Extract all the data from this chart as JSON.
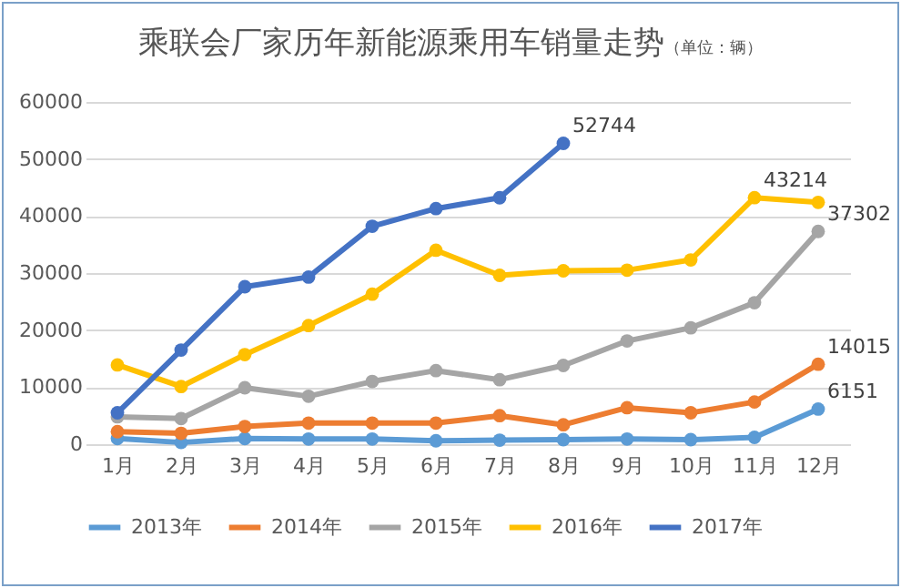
{
  "chart_data": {
    "type": "line",
    "title": "乘联会厂家历年新能源乘用车销量走势",
    "subtitle": "（单位：辆）",
    "categories": [
      "1月",
      "2月",
      "3月",
      "4月",
      "5月",
      "6月",
      "7月",
      "8月",
      "9月",
      "10月",
      "11月",
      "12月"
    ],
    "series": [
      {
        "name": "2013年",
        "color": "#5b9bd5",
        "values": [
          1000,
          300,
          1000,
          900,
          900,
          600,
          700,
          800,
          900,
          800,
          1200,
          6151
        ],
        "value_labels": [
          null,
          null,
          null,
          null,
          null,
          null,
          null,
          null,
          null,
          null,
          null,
          "6151"
        ]
      },
      {
        "name": "2014年",
        "color": "#ed7d31",
        "values": [
          2200,
          1900,
          3100,
          3700,
          3700,
          3700,
          5000,
          3400,
          6400,
          5500,
          7400,
          14015
        ],
        "value_labels": [
          null,
          null,
          null,
          null,
          null,
          null,
          null,
          null,
          null,
          null,
          null,
          "14015"
        ]
      },
      {
        "name": "2015年",
        "color": "#a5a5a5",
        "values": [
          4800,
          4500,
          9900,
          8400,
          11000,
          12900,
          11300,
          13800,
          18100,
          20400,
          24800,
          37302
        ],
        "value_labels": [
          null,
          null,
          null,
          null,
          null,
          null,
          null,
          null,
          null,
          null,
          null,
          "37302"
        ]
      },
      {
        "name": "2016年",
        "color": "#ffc000",
        "values": [
          13900,
          10100,
          15700,
          20800,
          26300,
          34000,
          29600,
          30400,
          30500,
          32300,
          43214,
          42400
        ],
        "value_labels": [
          null,
          null,
          null,
          null,
          null,
          null,
          null,
          null,
          null,
          null,
          "43214",
          null
        ]
      },
      {
        "name": "2017年",
        "color": "#4472c4",
        "values": [
          5500,
          16500,
          27600,
          29300,
          38200,
          41300,
          43200,
          52744,
          null,
          null,
          null,
          null
        ],
        "value_labels": [
          null,
          null,
          null,
          null,
          null,
          null,
          null,
          "52744",
          null,
          null,
          null,
          null
        ]
      }
    ],
    "ylim": [
      0,
      60000
    ],
    "yticks": [
      0,
      10000,
      20000,
      30000,
      40000,
      50000,
      60000
    ],
    "grid": "y",
    "legend": "bottom",
    "marker": "circle",
    "line_style": "solid"
  }
}
